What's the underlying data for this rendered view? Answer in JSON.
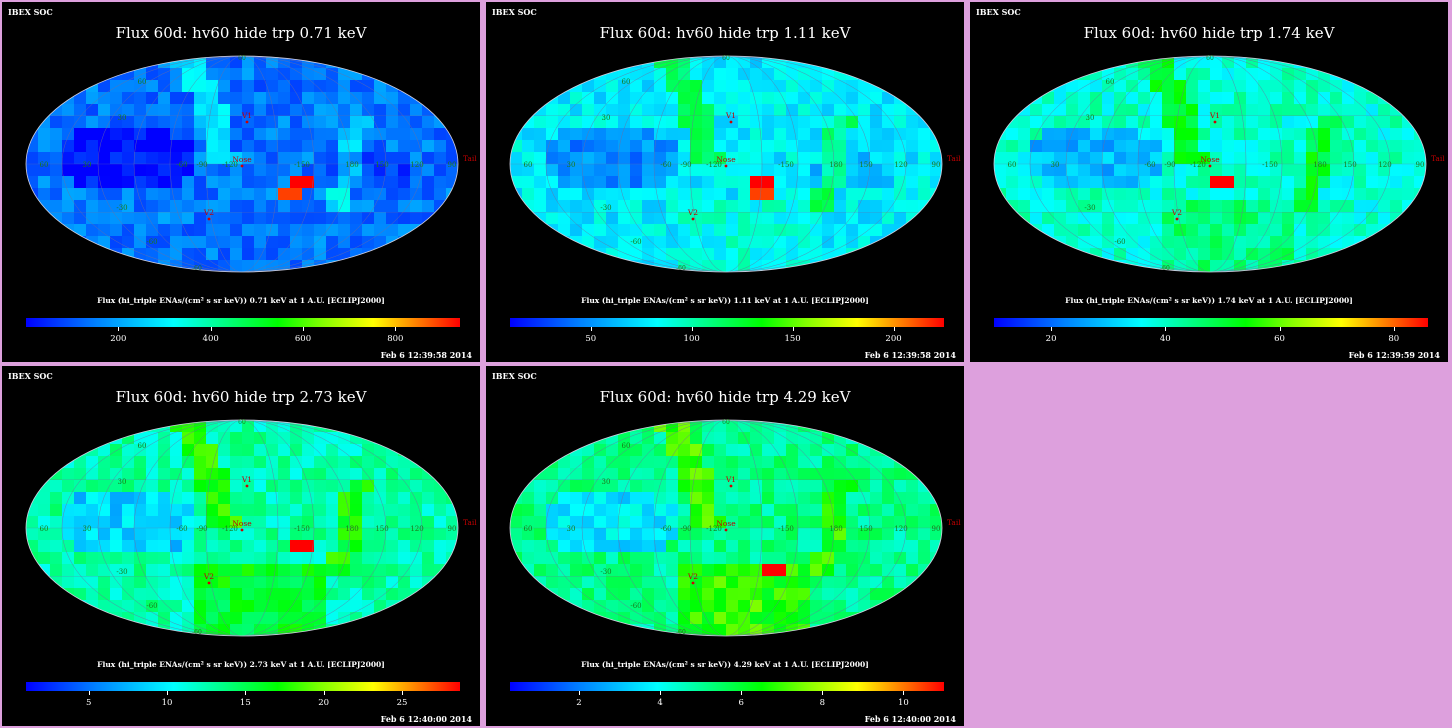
{
  "panels": [
    {
      "header": "IBEX SOC",
      "title": "Flux 60d: hv60 hide trp 0.71 keV",
      "colorbar_label": "Flux (hi_triple ENAs/(cm² s sr keV)) 0.71 keV at 1 A.U. [ECLIPJ2000]",
      "ticks": [
        "200",
        "400",
        "600",
        "800"
      ],
      "tick_values": [
        200,
        400,
        600,
        800
      ],
      "range": [
        0,
        940
      ],
      "timestamp": "Feb  6 12:39:58 2014"
    },
    {
      "header": "IBEX SOC",
      "title": "Flux 60d: hv60 hide trp 1.11 keV",
      "colorbar_label": "Flux (hi_triple ENAs/(cm² s sr keV)) 1.11 keV at 1 A.U. [ECLIPJ2000]",
      "ticks": [
        "50",
        "100",
        "150",
        "200"
      ],
      "tick_values": [
        50,
        100,
        150,
        200
      ],
      "range": [
        10,
        225
      ],
      "timestamp": "Feb  6 12:39:58 2014"
    },
    {
      "header": "IBEX SOC",
      "title": "Flux 60d: hv60 hide trp 1.74 keV",
      "colorbar_label": "Flux (hi_triple ENAs/(cm² s sr keV)) 1.74 keV at 1 A.U. [ECLIPJ2000]",
      "ticks": [
        "20",
        "40",
        "60",
        "80"
      ],
      "tick_values": [
        20,
        40,
        60,
        80
      ],
      "range": [
        10,
        86
      ],
      "timestamp": "Feb  6 12:39:59 2014"
    },
    {
      "header": "IBEX SOC",
      "title": "Flux 60d: hv60 hide trp 2.73 keV",
      "colorbar_label": "Flux (hi_triple ENAs/(cm² s sr keV)) 2.73 keV at 1 A.U. [ECLIPJ2000]",
      "ticks": [
        "5",
        "10",
        "15",
        "20",
        "25"
      ],
      "tick_values": [
        5,
        10,
        15,
        20,
        25
      ],
      "range": [
        1,
        28.7
      ],
      "timestamp": "Feb  6 12:40:00 2014"
    },
    {
      "header": "IBEX SOC",
      "title": "Flux 60d: hv60 hide trp 4.29 keV",
      "colorbar_label": "Flux (hi_triple ENAs/(cm² s sr keV)) 4.29 keV at 1 A.U. [ECLIPJ2000]",
      "ticks": [
        "2",
        "4",
        "6",
        "8",
        "10"
      ],
      "tick_values": [
        2,
        4,
        6,
        8,
        10
      ],
      "range": [
        0.3,
        11
      ],
      "timestamp": "Feb  6 12:40:00 2014"
    }
  ],
  "map_labels": {
    "nose": "Nose",
    "tail": "Tail",
    "v1": "V1",
    "v2": "V2",
    "lon": [
      "60",
      "30",
      "-60",
      "-90",
      "-120",
      "-150",
      "180",
      "150",
      "120",
      "90"
    ],
    "lat": [
      "60",
      "30",
      "-30",
      "-60"
    ]
  },
  "chart_data": [
    {
      "type": "heatmap",
      "projection": "Mollweide (ecliptic J2000)",
      "title": "Flux 60d: hv60 hide trp 0.71 keV",
      "colorbar_ticks": [
        200,
        400,
        600,
        800
      ],
      "colorbar_range": [
        0,
        940
      ]
    },
    {
      "type": "heatmap",
      "projection": "Mollweide (ecliptic J2000)",
      "title": "Flux 60d: hv60 hide trp 1.11 keV",
      "colorbar_ticks": [
        50,
        100,
        150,
        200
      ],
      "colorbar_range": [
        10,
        225
      ]
    },
    {
      "type": "heatmap",
      "projection": "Mollweide (ecliptic J2000)",
      "title": "Flux 60d: hv60 hide trp 1.74 keV",
      "colorbar_ticks": [
        20,
        40,
        60,
        80
      ],
      "colorbar_range": [
        10,
        86
      ]
    },
    {
      "type": "heatmap",
      "projection": "Mollweide (ecliptic J2000)",
      "title": "Flux 60d: hv60 hide trp 2.73 keV",
      "colorbar_ticks": [
        5,
        10,
        15,
        20,
        25
      ],
      "colorbar_range": [
        1,
        28.7
      ]
    },
    {
      "type": "heatmap",
      "projection": "Mollweide (ecliptic J2000)",
      "title": "Flux 60d: hv60 hide trp 4.29 keV",
      "colorbar_ticks": [
        2,
        4,
        6,
        8,
        10
      ],
      "colorbar_range": [
        0.3,
        11
      ]
    }
  ]
}
